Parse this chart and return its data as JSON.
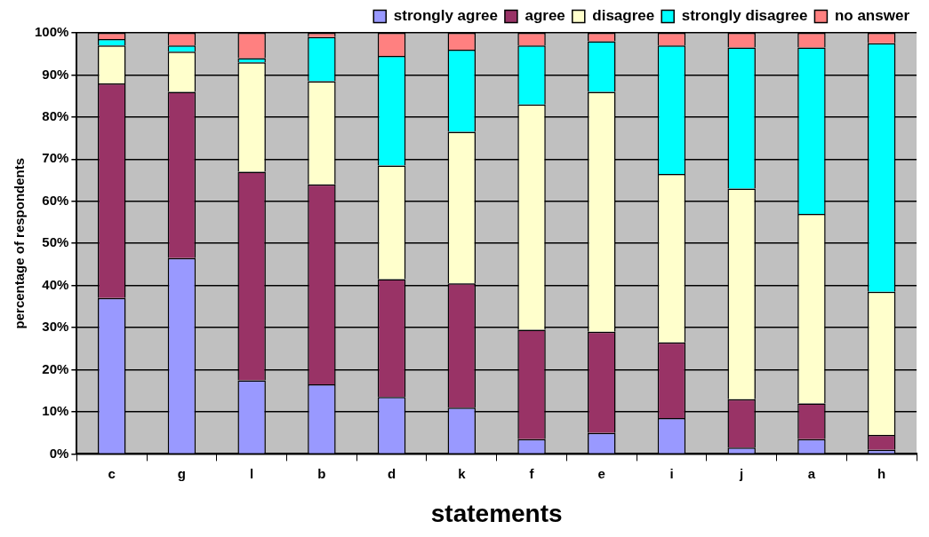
{
  "chart_data": {
    "type": "bar",
    "stacked": true,
    "xlabel": "statements",
    "ylabel": "percentage of respondents",
    "categories": [
      "c",
      "g",
      "l",
      "b",
      "d",
      "k",
      "f",
      "e",
      "i",
      "j",
      "a",
      "h"
    ],
    "series": [
      {
        "name": "strongly agree",
        "color": "#9999ff",
        "values": [
          37,
          46.5,
          17.5,
          16.5,
          13.5,
          11,
          3.5,
          5,
          8.5,
          1.5,
          3.5,
          1
        ]
      },
      {
        "name": "agree",
        "color": "#993366",
        "values": [
          51,
          39.5,
          49.5,
          47.5,
          28,
          29.5,
          26,
          24,
          18,
          11.5,
          8.5,
          3.5
        ]
      },
      {
        "name": "disagree",
        "color": "#ffffcc",
        "values": [
          9,
          9.5,
          26,
          24.5,
          27,
          36,
          53.5,
          57,
          40,
          50,
          45,
          34
        ]
      },
      {
        "name": "strongly disagree",
        "color": "#00ffff",
        "values": [
          1.5,
          1.5,
          1,
          10.5,
          26,
          19.5,
          14,
          12,
          30.5,
          33.5,
          39.5,
          59
        ]
      },
      {
        "name": "no answer",
        "color": "#ff8080",
        "values": [
          1.5,
          3,
          6,
          1,
          5.5,
          4,
          3,
          2,
          3,
          3.5,
          3.5,
          2.5
        ]
      }
    ],
    "ylim": [
      0,
      100
    ],
    "yticks": [
      {
        "value": 0,
        "label": "0%"
      },
      {
        "value": 10,
        "label": "10%"
      },
      {
        "value": 20,
        "label": "20%"
      },
      {
        "value": 30,
        "label": "30%"
      },
      {
        "value": 40,
        "label": "40%"
      },
      {
        "value": 50,
        "label": "50%"
      },
      {
        "value": 60,
        "label": "60%"
      },
      {
        "value": 70,
        "label": "70%"
      },
      {
        "value": 80,
        "label": "80%"
      },
      {
        "value": 90,
        "label": "90%"
      },
      {
        "value": 100,
        "label": "100%"
      }
    ],
    "grid": "y",
    "legend": "top right"
  }
}
